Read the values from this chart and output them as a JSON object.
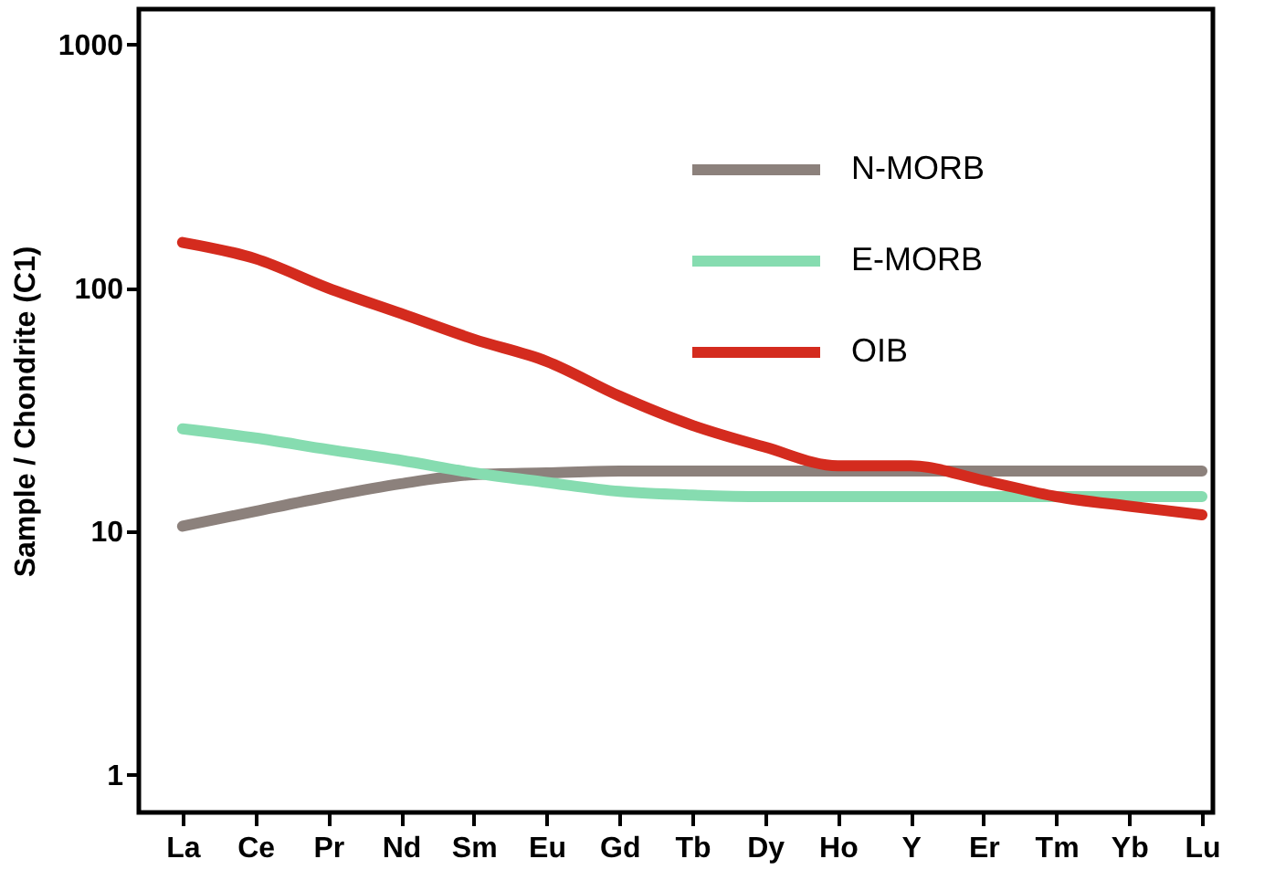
{
  "chart_data": {
    "type": "line",
    "ylabel": "Sample / Chondrite (C1)",
    "categories": [
      "La",
      "Ce",
      "Pr",
      "Nd",
      "Sm",
      "Eu",
      "Gd",
      "Tb",
      "Dy",
      "Ho",
      "Y",
      "Er",
      "Tm",
      "Yb",
      "Lu"
    ],
    "series": [
      {
        "name": "N-MORB",
        "color": "#8c817c",
        "values": [
          10.5,
          12.1,
          13.9,
          15.7,
          17.1,
          17.4,
          17.7,
          17.7,
          17.7,
          17.7,
          17.7,
          17.7,
          17.7,
          17.7,
          17.7
        ]
      },
      {
        "name": "E-MORB",
        "color": "#86dcb0",
        "values": [
          26.4,
          24.2,
          21.7,
          19.6,
          17.4,
          15.9,
          14.6,
          14.1,
          13.9,
          13.9,
          13.9,
          13.9,
          13.9,
          13.9,
          13.9
        ]
      },
      {
        "name": "OIB",
        "color": "#d42b1e",
        "values": [
          154,
          132,
          100,
          78.6,
          61.6,
          50,
          36,
          27.3,
          22.2,
          18.6,
          18.6,
          16.2,
          13.9,
          12.7,
          11.7
        ]
      }
    ],
    "log": true,
    "ylim": [
      0.7,
      1400
    ],
    "yticks": [
      1,
      10,
      100,
      1000
    ],
    "grid": false,
    "legend": "top right",
    "marker": "none",
    "line_style": "solid"
  }
}
